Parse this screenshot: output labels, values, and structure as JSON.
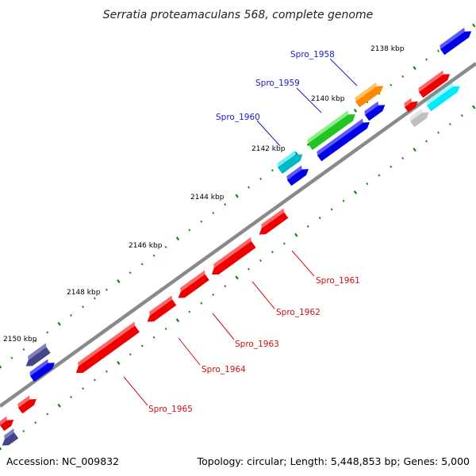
{
  "title": "Serratia proteamaculans 568, complete genome",
  "footer": {
    "accession": "Accession: NC_009832",
    "summary": "Topology: circular; Length: 5,448,853 bp; Genes: 5,000"
  },
  "colors": {
    "backbone": "#8a8a8a",
    "tick": "#0a8a0a",
    "label_forward": "#1a1acc",
    "label_reverse": "#cc1111"
  },
  "kbp_ticks": [
    {
      "label": "2138 kbp"
    },
    {
      "label": "2140 kbp"
    },
    {
      "label": "2142 kbp"
    },
    {
      "label": "2144 kbp"
    },
    {
      "label": "2146 kbp"
    },
    {
      "label": "2148 kbp"
    },
    {
      "label": "2150 kbp"
    }
  ],
  "gene_labels": [
    {
      "name": "Spro_1958",
      "strand": "forward"
    },
    {
      "name": "Spro_1959",
      "strand": "forward"
    },
    {
      "name": "Spro_1960",
      "strand": "forward"
    },
    {
      "name": "Spro_1961",
      "strand": "reverse"
    },
    {
      "name": "Spro_1962",
      "strand": "reverse"
    },
    {
      "name": "Spro_1963",
      "strand": "reverse"
    },
    {
      "name": "Spro_1964",
      "strand": "reverse"
    },
    {
      "name": "Spro_1965",
      "strand": "reverse"
    }
  ]
}
